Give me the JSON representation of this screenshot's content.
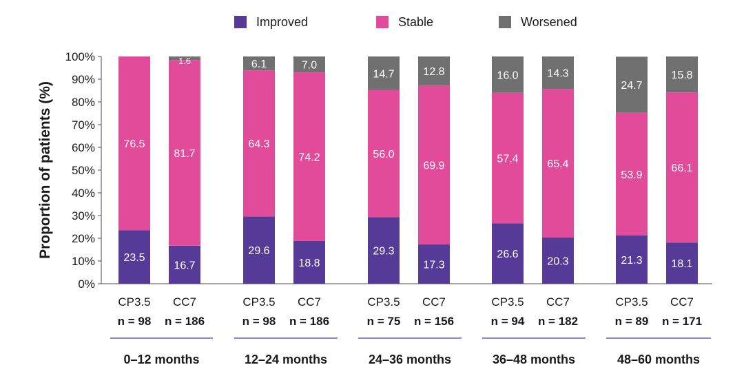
{
  "chart_data": {
    "type": "bar",
    "stacked": true,
    "ylabel": "Proportion of patients (%)",
    "ylim": [
      0,
      100
    ],
    "yticks": [
      "0%",
      "10%",
      "20%",
      "30%",
      "40%",
      "50%",
      "60%",
      "70%",
      "80%",
      "90%",
      "100%"
    ],
    "legend": {
      "placement": "top",
      "items": [
        {
          "name": "Improved",
          "color": "#553a98"
        },
        {
          "name": "Stable",
          "color": "#e24b9a"
        },
        {
          "name": "Worsened",
          "color": "#707070"
        }
      ]
    },
    "groups": [
      {
        "label": "0–12 months",
        "bars": [
          {
            "name": "CP3.5",
            "n": "n = 98",
            "improved": 23.5,
            "stable": 76.5,
            "worsened": null
          },
          {
            "name": "CC7",
            "n": "n = 186",
            "improved": 16.7,
            "stable": 81.7,
            "worsened": 1.6
          }
        ]
      },
      {
        "label": "12–24 months",
        "bars": [
          {
            "name": "CP3.5",
            "n": "n = 98",
            "improved": 29.6,
            "stable": 64.3,
            "worsened": 6.1
          },
          {
            "name": "CC7",
            "n": "n = 186",
            "improved": 18.8,
            "stable": 74.2,
            "worsened": 7.0
          }
        ]
      },
      {
        "label": "24–36 months",
        "bars": [
          {
            "name": "CP3.5",
            "n": "n = 75",
            "improved": 29.3,
            "stable": 56.0,
            "worsened": 14.7
          },
          {
            "name": "CC7",
            "n": "n = 156",
            "improved": 17.3,
            "stable": 69.9,
            "worsened": 12.8
          }
        ]
      },
      {
        "label": "36–48 months",
        "bars": [
          {
            "name": "CP3.5",
            "n": "n = 94",
            "improved": 26.6,
            "stable": 57.4,
            "worsened": 16.0
          },
          {
            "name": "CC7",
            "n": "n = 182",
            "improved": 20.3,
            "stable": 65.4,
            "worsened": 14.3
          }
        ]
      },
      {
        "label": "48–60 months",
        "bars": [
          {
            "name": "CP3.5",
            "n": "n = 89",
            "improved": 21.3,
            "stable": 53.9,
            "worsened": 24.7
          },
          {
            "name": "CC7",
            "n": "n = 171",
            "improved": 18.1,
            "stable": 66.1,
            "worsened": 15.8
          }
        ]
      }
    ],
    "group_underline_color": "#6a5acd"
  }
}
